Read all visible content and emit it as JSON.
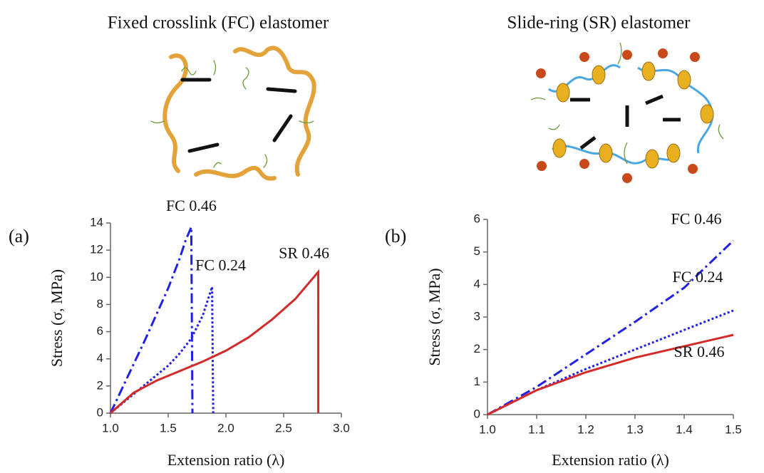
{
  "schematics": [
    {
      "title": "Fixed crosslink (FC) elastomer"
    },
    {
      "title": "Slide-ring (SR) elastomer"
    }
  ],
  "chart_data": [
    {
      "type": "line",
      "panel": "(a)",
      "xlabel": "Extension ratio (λ)",
      "ylabel": "Stress (σ, MPa)",
      "xlim": [
        1.0,
        3.0
      ],
      "ylim": [
        0,
        14
      ],
      "xticks": [
        {
          "value": 1.0,
          "label": "1.0"
        },
        {
          "value": 1.5,
          "label": "1.5"
        },
        {
          "value": 2.0,
          "label": "2.0"
        },
        {
          "value": 2.5,
          "label": "2.5"
        },
        {
          "value": 3.0,
          "label": "3.0"
        }
      ],
      "yticks": [
        0,
        2,
        4,
        6,
        8,
        10,
        12,
        14
      ],
      "series": [
        {
          "name": "FC 0.46",
          "color": "#2020e8",
          "style": "dashdot",
          "x": [
            1.0,
            1.1,
            1.2,
            1.3,
            1.4,
            1.5,
            1.6,
            1.65,
            1.7,
            1.71
          ],
          "values": [
            0,
            1.8,
            3.6,
            5.4,
            7.3,
            9.2,
            11.4,
            12.7,
            13.7,
            0
          ]
        },
        {
          "name": "FC 0.24",
          "color": "#2020e8",
          "style": "dotted",
          "x": [
            1.0,
            1.2,
            1.4,
            1.5,
            1.6,
            1.7,
            1.8,
            1.88,
            1.89
          ],
          "values": [
            0,
            1.4,
            2.8,
            3.5,
            4.4,
            5.5,
            7.2,
            9.3,
            0
          ]
        },
        {
          "name": "SR 0.46",
          "color": "#d42a2a",
          "style": "solid",
          "x": [
            1.0,
            1.2,
            1.4,
            1.6,
            1.8,
            2.0,
            2.2,
            2.4,
            2.6,
            2.8,
            2.8
          ],
          "values": [
            0,
            1.5,
            2.4,
            3.1,
            3.8,
            4.6,
            5.6,
            6.9,
            8.4,
            10.4,
            0
          ]
        }
      ]
    },
    {
      "type": "line",
      "panel": "(b)",
      "xlabel": "Extension ratio (λ)",
      "ylabel": "Stress (σ, MPa)",
      "xlim": [
        1.0,
        1.5
      ],
      "ylim": [
        0,
        6
      ],
      "xticks": [
        {
          "value": 1.0,
          "label": "1.0"
        },
        {
          "value": 1.1,
          "label": "1.1"
        },
        {
          "value": 1.2,
          "label": "1.2"
        },
        {
          "value": 1.3,
          "label": "1.3"
        },
        {
          "value": 1.4,
          "label": "1.4"
        },
        {
          "value": 1.5,
          "label": "1.5"
        }
      ],
      "yticks": [
        0,
        1,
        2,
        3,
        4,
        5,
        6
      ],
      "series": [
        {
          "name": "FC 0.46",
          "color": "#2020e8",
          "style": "dashdot",
          "x": [
            1.0,
            1.1,
            1.2,
            1.3,
            1.4,
            1.5
          ],
          "values": [
            0,
            0.85,
            1.85,
            2.85,
            3.9,
            5.35
          ]
        },
        {
          "name": "FC 0.24",
          "color": "#2020e8",
          "style": "dotted",
          "x": [
            1.0,
            1.1,
            1.2,
            1.3,
            1.4,
            1.5
          ],
          "values": [
            0,
            0.75,
            1.4,
            2.0,
            2.6,
            3.2
          ]
        },
        {
          "name": "SR 0.46",
          "color": "#d42a2a",
          "style": "solid",
          "x": [
            1.0,
            1.1,
            1.2,
            1.3,
            1.4,
            1.5
          ],
          "values": [
            0,
            0.75,
            1.3,
            1.75,
            2.1,
            2.45
          ]
        }
      ]
    }
  ]
}
